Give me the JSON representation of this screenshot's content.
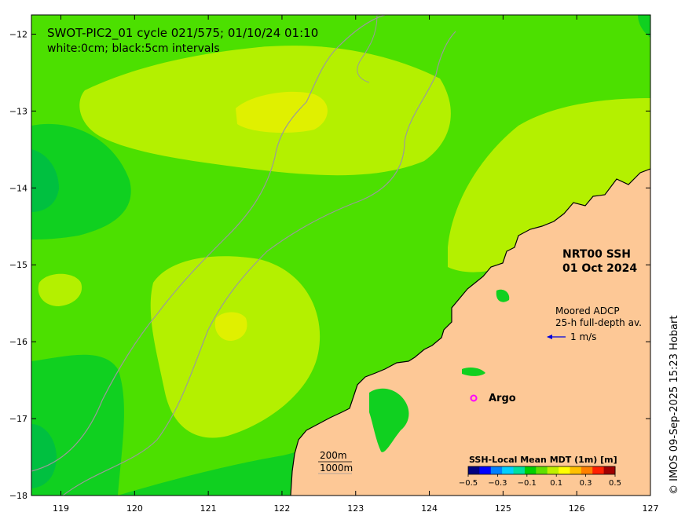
{
  "title_line1": "SWOT-PIC2_01 cycle 021/575; 01/10/24 01:10",
  "title_line2": "white:0cm; black:5cm intervals",
  "product": {
    "line1": "NRT00 SSH",
    "line2": "01 Oct 2024"
  },
  "adcp": {
    "line1": "Moored ADCP",
    "line2": "25-h full-depth av.",
    "scale": "1 m/s",
    "arrow_color": "#0000dd"
  },
  "argo": {
    "label": "Argo",
    "marker_color": "#ff00ff"
  },
  "bathymetry": {
    "contour1": "200m",
    "contour2": "1000m"
  },
  "credit": "© IMOS 09-Sep-2025 15:23 Hobart",
  "axes": {
    "x_ticks": [
      "119",
      "120",
      "121",
      "122",
      "123",
      "124",
      "125",
      "126",
      "127"
    ],
    "y_ticks": [
      "−12",
      "−13",
      "−14",
      "−15",
      "−16",
      "−17",
      "−18"
    ],
    "lon_range": [
      118.6,
      127.0
    ],
    "lat_range": [
      -18.0,
      -11.75
    ]
  },
  "colorbar": {
    "title": "SSH-Local Mean MDT (1m) [m]",
    "tick_labels": [
      "−0.5",
      "−0.3",
      "−0.1",
      "0.1",
      "0.3",
      "0.5"
    ],
    "colors": [
      "#000080",
      "#0000ff",
      "#0080ff",
      "#00d0ff",
      "#00e0a0",
      "#00d000",
      "#60e000",
      "#c0f000",
      "#ffff00",
      "#ffc000",
      "#ff8000",
      "#ff2000",
      "#a00000"
    ]
  },
  "colors": {
    "land": "#fdc896",
    "field_base": "#4ce000",
    "field_yellow_green": "#b4f000",
    "field_yellow": "#e0f000",
    "field_green": "#10d020",
    "field_dark_green": "#00c040"
  }
}
